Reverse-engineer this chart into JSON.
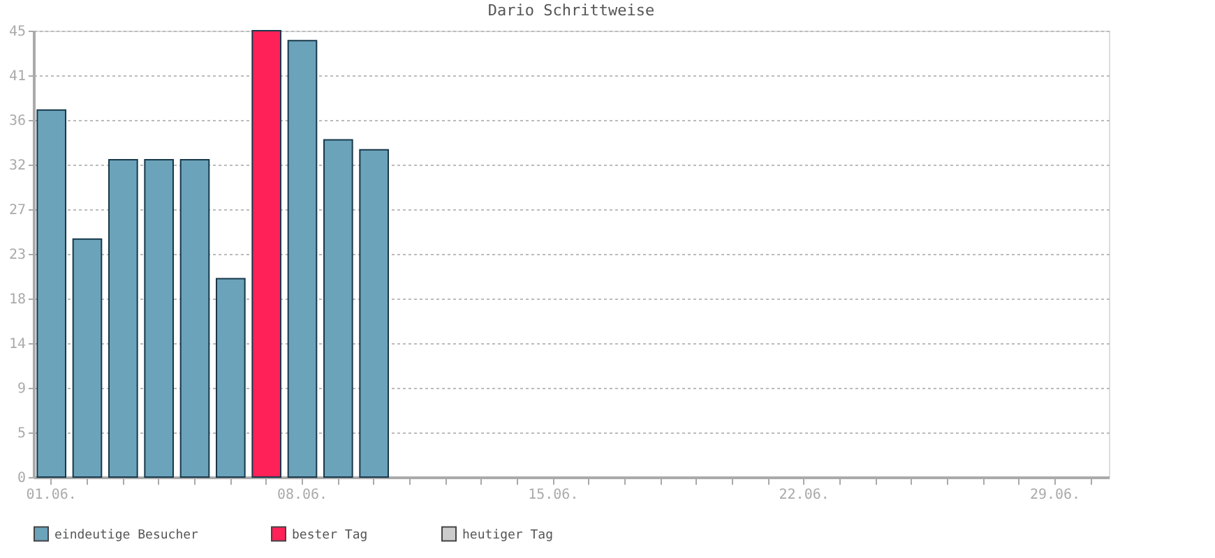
{
  "chart_data": {
    "type": "bar",
    "title": "Dario Schrittweise",
    "categories": [
      "01.06.",
      null,
      null,
      null,
      null,
      null,
      null,
      "08.06.",
      null,
      null,
      null,
      null,
      null,
      null,
      "15.06.",
      null,
      null,
      null,
      null,
      null,
      null,
      "22.06.",
      null,
      null,
      null,
      null,
      null,
      null,
      "29.06.",
      null
    ],
    "series": [
      {
        "name": "eindeutige Besucher",
        "color": "#6ba3ba",
        "values": [
          37,
          24,
          32,
          32,
          32,
          20,
          null,
          44,
          34,
          33,
          null,
          null,
          null,
          null,
          null,
          null,
          null,
          null,
          null,
          null,
          null,
          null,
          null,
          null,
          null,
          null,
          null,
          null,
          null,
          null
        ]
      },
      {
        "name": "bester Tag",
        "color": "#ff2158",
        "values": [
          null,
          null,
          null,
          null,
          null,
          null,
          45,
          null,
          null,
          null,
          null,
          null,
          null,
          null,
          null,
          null,
          null,
          null,
          null,
          null,
          null,
          null,
          null,
          null,
          null,
          null,
          null,
          null,
          null,
          null
        ]
      },
      {
        "name": "heutiger Tag",
        "color": "#cccccc",
        "values": [
          null,
          null,
          null,
          null,
          null,
          null,
          null,
          null,
          null,
          null,
          null,
          null,
          null,
          null,
          null,
          null,
          null,
          null,
          null,
          null,
          null,
          null,
          null,
          null,
          null,
          null,
          null,
          null,
          null,
          null
        ]
      }
    ],
    "ylim": [
      0,
      45
    ],
    "yticks": [
      0,
      {
        "value": 4.5,
        "label": "5"
      },
      9,
      {
        "value": 13.5,
        "label": "14"
      },
      18,
      {
        "value": 22.5,
        "label": "23"
      },
      27,
      {
        "value": 31.5,
        "label": "32"
      },
      36,
      {
        "value": 40.5,
        "label": "41"
      },
      45
    ],
    "grid": "y",
    "legend": "bottom"
  }
}
